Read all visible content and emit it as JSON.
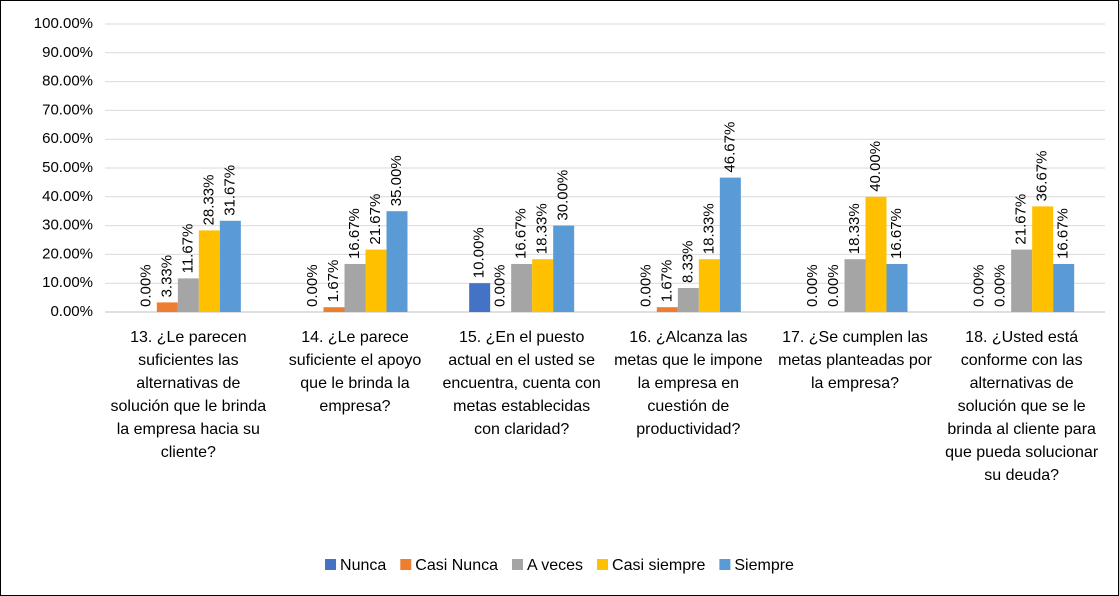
{
  "chart_data": {
    "type": "bar",
    "categories": [
      "13. ¿Le parecen suficientes las alternativas de solución que le brinda la empresa hacia su cliente?",
      "14. ¿Le parece suficiente el apoyo que le brinda la empresa?",
      "15. ¿En el puesto actual en el usted se encuentra, cuenta con metas establecidas con claridad?",
      "16. ¿Alcanza las metas que le impone la empresa en cuestión de productividad?",
      "17. ¿Se cumplen las metas planteadas por la empresa?",
      "18. ¿Usted está conforme con las alternativas de solución que se le brinda al cliente para que pueda solucionar su deuda?"
    ],
    "series": [
      {
        "name": "Nunca",
        "color": "#4472c4",
        "values": [
          0,
          0,
          10,
          0,
          0,
          0
        ],
        "value_labels": [
          "0.00%",
          "0.00%",
          "10.00%",
          "0.00%",
          "0.00%",
          "0.00%"
        ]
      },
      {
        "name": "Casi Nunca",
        "color": "#ed7d31",
        "values": [
          3.33,
          1.67,
          0,
          1.67,
          0,
          0
        ],
        "value_labels": [
          "3.33%",
          "1.67%",
          "0.00%",
          "1.67%",
          "0.00%",
          "0.00%"
        ]
      },
      {
        "name": "A veces",
        "color": "#a5a5a5",
        "values": [
          11.67,
          16.67,
          16.67,
          8.33,
          18.33,
          21.67
        ],
        "value_labels": [
          "11.67%",
          "16.67%",
          "16.67%",
          "8.33%",
          "18.33%",
          "21.67%"
        ]
      },
      {
        "name": "Casi siempre",
        "color": "#ffc000",
        "values": [
          28.33,
          21.67,
          18.33,
          18.33,
          40,
          36.67
        ],
        "value_labels": [
          "28.33%",
          "21.67%",
          "18.33%",
          "18.33%",
          "40.00%",
          "36.67%"
        ]
      },
      {
        "name": "Siempre",
        "color": "#5b9bd5",
        "values": [
          31.67,
          35,
          30,
          46.67,
          16.67,
          16.67
        ],
        "value_labels": [
          "31.67%",
          "35.00%",
          "30.00%",
          "46.67%",
          "16.67%",
          "16.67%"
        ]
      }
    ],
    "ylim": [
      0,
      100
    ],
    "yticks": [
      {
        "value": 0,
        "label": "0.00%"
      },
      {
        "value": 10,
        "label": "10.00%"
      },
      {
        "value": 20,
        "label": "20.00%"
      },
      {
        "value": 30,
        "label": "30.00%"
      },
      {
        "value": 40,
        "label": "40.00%"
      },
      {
        "value": 50,
        "label": "50.00%"
      },
      {
        "value": 60,
        "label": "60.00%"
      },
      {
        "value": 70,
        "label": "70.00%"
      },
      {
        "value": 80,
        "label": "80.00%"
      },
      {
        "value": 90,
        "label": "90.00%"
      },
      {
        "value": 100,
        "label": "100.00%"
      }
    ],
    "grid": true,
    "legend": "bottom"
  }
}
